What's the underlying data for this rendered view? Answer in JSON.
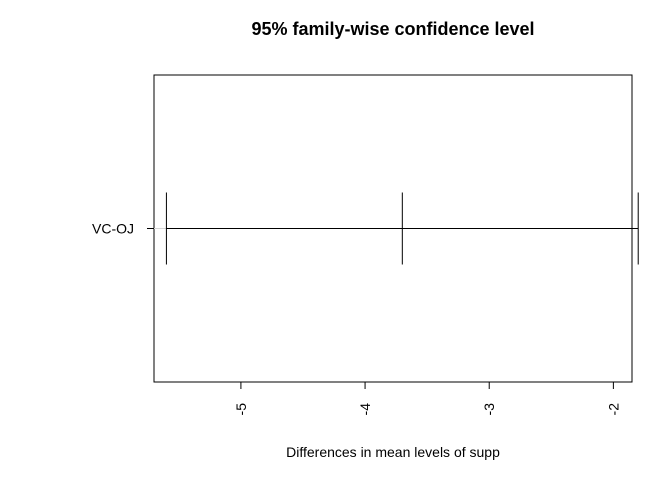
{
  "chart_data": {
    "type": "errorbar",
    "title": "95% family-wise confidence level",
    "xlabel": "Differences in mean levels of supp",
    "ylabel": "",
    "xlim": [
      -5.7,
      -1.85
    ],
    "x_ticks": [
      -5,
      -4,
      -3,
      -2
    ],
    "x_tick_labels": [
      "-5",
      "-4",
      "-3",
      "-2"
    ],
    "categories": [
      "VC-OJ"
    ],
    "series": [
      {
        "estimates": [
          -3.7
        ],
        "lower": [
          -5.6
        ],
        "upper": [
          -1.8
        ]
      }
    ],
    "grid": false,
    "reference_line_color": "#d3d3d3",
    "line_color": "#000000"
  }
}
